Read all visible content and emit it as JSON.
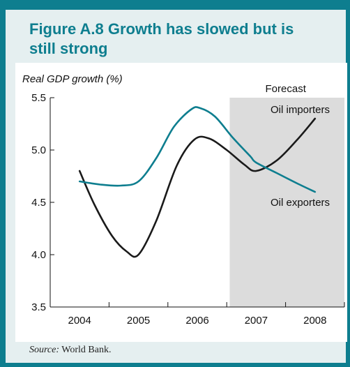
{
  "figure": {
    "title": "Figure A.8  Growth has slowed but is still strong",
    "title_line1": "Figure A.8  Growth has slowed but is",
    "title_line2": "still strong",
    "source_label": "Source:",
    "source_text": " World Bank.",
    "accent_color": "#0e7e8f"
  },
  "chart_data": {
    "type": "line",
    "ylabel": "Real GDP growth (%)",
    "xlabel": "",
    "categories": [
      "2004",
      "2005",
      "2006",
      "2007",
      "2008"
    ],
    "ylim": [
      3.5,
      5.5
    ],
    "yticks": [
      3.5,
      4.0,
      4.5,
      5.0,
      5.5
    ],
    "ytick_labels": [
      "3.5",
      "4.0",
      "4.5",
      "5.0",
      "5.5"
    ],
    "forecast_label": "Forecast",
    "forecast_start": 2006.55,
    "forecast_end": 2008.5,
    "grid": false,
    "series": [
      {
        "name": "Oil importers",
        "color": "#1a1a1a",
        "x": [
          2004,
          2004.25,
          2004.55,
          2004.8,
          2005,
          2005.3,
          2005.65,
          2005.95,
          2006.2,
          2006.5,
          2006.8,
          2007,
          2007.35,
          2007.7,
          2008
        ],
        "y": [
          4.8,
          4.48,
          4.18,
          4.03,
          4.0,
          4.32,
          4.85,
          5.1,
          5.11,
          5.0,
          4.86,
          4.8,
          4.9,
          5.1,
          5.3
        ]
      },
      {
        "name": "Oil exporters",
        "color": "#0e7e8f",
        "x": [
          2004,
          2004.35,
          2004.7,
          2005,
          2005.3,
          2005.6,
          2005.9,
          2006.05,
          2006.3,
          2006.6,
          2006.9,
          2007,
          2007.35,
          2007.7,
          2008
        ],
        "y": [
          4.7,
          4.67,
          4.66,
          4.7,
          4.92,
          5.22,
          5.39,
          5.4,
          5.32,
          5.12,
          4.94,
          4.88,
          4.78,
          4.68,
          4.6
        ]
      }
    ],
    "series_labels": {
      "Oil importers": "Oil importers",
      "Oil exporters": "Oil exporters"
    }
  }
}
